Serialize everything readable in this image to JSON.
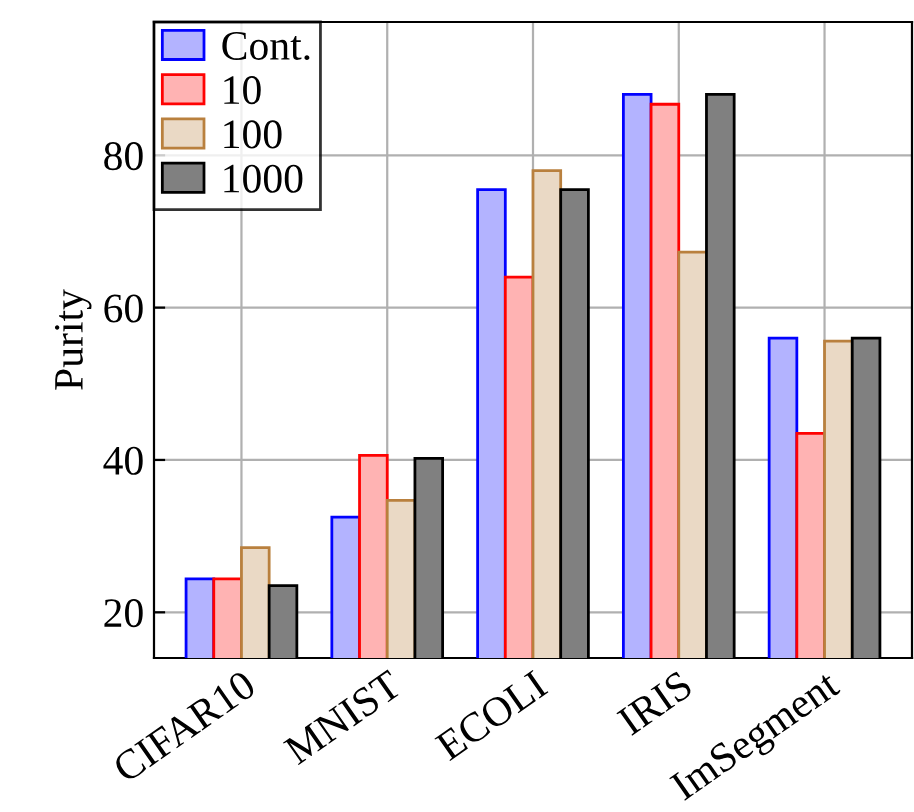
{
  "chart_data": {
    "type": "bar",
    "ylabel": "Purity",
    "categories": [
      "CIFAR10",
      "MNIST",
      "ECOLI",
      "IRIS",
      "ImSegment"
    ],
    "series": [
      {
        "name": "Cont.",
        "color": "#b3b3ff",
        "values": [
          24.4,
          32.5,
          75.5,
          88.0,
          56.0
        ]
      },
      {
        "name": "10",
        "color": "#ffb3b3",
        "values": [
          24.4,
          40.6,
          64.0,
          86.7,
          43.5
        ]
      },
      {
        "name": "100",
        "color": "#ead9c5",
        "values": [
          28.5,
          34.7,
          78.0,
          67.3,
          55.6
        ]
      },
      {
        "name": "1000",
        "color": "#808080",
        "values": [
          23.5,
          40.2,
          75.5,
          88.0,
          56.0
        ]
      }
    ],
    "ylim": [
      14,
      97.5
    ],
    "yticks": [
      20,
      40,
      60,
      80
    ],
    "grid": true,
    "legend": "top left"
  }
}
